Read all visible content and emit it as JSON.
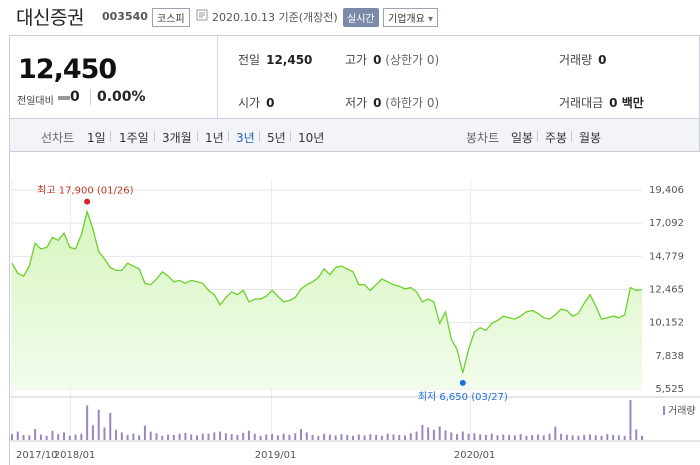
{
  "header": {
    "title": "대신증권",
    "code": "003540",
    "market": "코스피",
    "date_text": "2020.10.13  기준(개장전)",
    "realtime_label": "실시간",
    "company_label": "기업개요",
    "company_caret": "▾"
  },
  "summary": {
    "price": "12,450",
    "change_label": "전일대비",
    "change_value": "0",
    "change_pct": "0.00%",
    "prev_close_label": "전일",
    "prev_close_value": "12,450",
    "high_label": "고가",
    "high_value": "0",
    "high_sub": "(상한가 0)",
    "volume_label": "거래량",
    "volume_value": "0",
    "open_label": "시가",
    "open_value": "0",
    "low_label": "저가",
    "low_value": "0",
    "low_sub": "(하한가 0)",
    "amount_label": "거래대금",
    "amount_value": "0 백만"
  },
  "period_bar": {
    "line_chart_label": "선차트",
    "periods": [
      "1일",
      "1주일",
      "3개월",
      "1년",
      "3년",
      "5년",
      "10년"
    ],
    "active_period": "3년",
    "candle_chart_label": "봉차트",
    "candle_periods": [
      "일봉",
      "주봉",
      "월봉"
    ]
  },
  "colors": {
    "line": "#6ad12a",
    "area_top": "#d6f5bf",
    "area_bottom": "#f3fcec",
    "volume": "#9b86c4",
    "max_marker": "#d9242a",
    "min_marker": "#1e6fd9"
  },
  "chart_data": {
    "type": "area",
    "title": "",
    "xlabel": "",
    "ylabel": "",
    "y_axis_position": "right",
    "grid": true,
    "ylim": [
      5525,
      19406
    ],
    "y_ticks": [
      "19,406",
      "17,092",
      "14,779",
      "12,465",
      "10,152",
      "7,838",
      "5,525"
    ],
    "x_tick_labels": [
      "2017/10",
      "2018/01",
      "2019/01",
      "2020/01"
    ],
    "series": [
      {
        "values": [
          14300,
          13600,
          13400,
          14100,
          15700,
          15300,
          15400,
          16100,
          15900,
          16400,
          15400,
          15300,
          16300,
          17900,
          16700,
          15100,
          14600,
          14000,
          13800,
          13800,
          14300,
          14100,
          13900,
          12900,
          12800,
          13200,
          13700,
          13400,
          13000,
          13100,
          12900,
          13100,
          13000,
          12900,
          12400,
          12100,
          11400,
          11900,
          12300,
          12100,
          12400,
          11600,
          11800,
          11800,
          12000,
          12400,
          12000,
          11600,
          11700,
          11900,
          12500,
          12800,
          13000,
          13300,
          13900,
          13500,
          14000,
          14100,
          13900,
          13700,
          12800,
          12800,
          12400,
          12800,
          13200,
          13000,
          12800,
          12700,
          12500,
          12600,
          12300,
          11600,
          11800,
          11600,
          10100,
          10900,
          9000,
          8300,
          6650,
          8300,
          9500,
          9800,
          9600,
          10100,
          10300,
          10600,
          10500,
          10400,
          10600,
          10900,
          11000,
          10800,
          10500,
          10400,
          10700,
          11100,
          11000,
          10600,
          10800,
          11500,
          12100,
          11300,
          10400,
          10500,
          10600,
          10500,
          10700,
          12600,
          12400,
          12450
        ]
      }
    ],
    "volume": [
      1.4,
      2.0,
      1.2,
      1.1,
      2.6,
      1.3,
      1.0,
      2.2,
      1.4,
      1.8,
      1.0,
      1.3,
      1.5,
      8.2,
      3.5,
      7.2,
      3.0,
      6.4,
      2.4,
      1.8,
      1.2,
      1.5,
      1.1,
      3.4,
      2.0,
      1.6,
      1.0,
      1.3,
      1.2,
      1.5,
      1.7,
      1.3,
      1.1,
      1.5,
      1.5,
      1.8,
      2.0,
      1.6,
      1.4,
      1.2,
      1.7,
      2.2,
      1.5,
      1.0,
      1.3,
      1.4,
      1.1,
      1.5,
      1.2,
      1.6,
      2.6,
      1.8,
      1.2,
      1.0,
      1.5,
      1.3,
      1.1,
      1.4,
      1.2,
      1.0,
      1.3,
      1.1,
      1.4,
      1.2,
      1.0,
      1.5,
      1.3,
      1.2,
      1.1,
      1.6,
      2.0,
      3.6,
      3.0,
      2.4,
      3.2,
      2.3,
      1.8,
      1.4,
      2.0,
      1.5,
      1.6,
      1.3,
      1.2,
      1.5,
      1.1,
      1.3,
      1.2,
      1.1,
      1.4,
      1.0,
      1.2,
      1.3,
      1.1,
      1.5,
      3.2,
      1.5,
      1.2,
      1.1,
      1.0,
      1.2,
      1.3,
      1.1,
      1.0,
      1.4,
      1.2,
      1.1,
      1.0,
      9.5,
      2.5,
      1.0
    ],
    "volume_legend": "거래량",
    "max_annotation": {
      "label": "최고 17,900 (01/26)",
      "value": 17900
    },
    "min_annotation": {
      "label": "최저 6,650 (03/27)",
      "value": 6650
    }
  }
}
